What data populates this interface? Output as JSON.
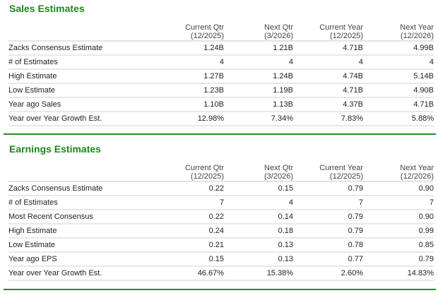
{
  "accent_color": "#1a8a1a",
  "sections": [
    {
      "title": "Sales Estimates",
      "columns": [
        {
          "label": "Current Qtr",
          "period": "(12/2025)"
        },
        {
          "label": "Next Qtr",
          "period": "(3/2026)"
        },
        {
          "label": "Current Year",
          "period": "(12/2025)"
        },
        {
          "label": "Next Year",
          "period": "(12/2026)"
        }
      ],
      "rows": [
        {
          "label": "Zacks Consensus Estimate",
          "values": [
            "1.24B",
            "1.21B",
            "4.71B",
            "4.99B"
          ]
        },
        {
          "label": "# of Estimates",
          "values": [
            "4",
            "4",
            "4",
            "4"
          ]
        },
        {
          "label": "High Estimate",
          "values": [
            "1.27B",
            "1.24B",
            "4.74B",
            "5.14B"
          ]
        },
        {
          "label": "Low Estimate",
          "values": [
            "1.23B",
            "1.19B",
            "4.71B",
            "4.90B"
          ]
        },
        {
          "label": "Year ago Sales",
          "values": [
            "1.10B",
            "1.13B",
            "4.37B",
            "4.71B"
          ]
        },
        {
          "label": "Year over Year Growth Est.",
          "values": [
            "12.98%",
            "7.34%",
            "7.83%",
            "5.88%"
          ]
        }
      ]
    },
    {
      "title": "Earnings Estimates",
      "columns": [
        {
          "label": "Current Qtr",
          "period": "(12/2025)"
        },
        {
          "label": "Next Qtr",
          "period": "(3/2026)"
        },
        {
          "label": "Current Year",
          "period": "(12/2025)"
        },
        {
          "label": "Next Year",
          "period": "(12/2026)"
        }
      ],
      "rows": [
        {
          "label": "Zacks Consensus Estimate",
          "values": [
            "0.22",
            "0.15",
            "0.79",
            "0.90"
          ]
        },
        {
          "label": "# of Estimates",
          "values": [
            "7",
            "4",
            "7",
            "7"
          ]
        },
        {
          "label": "Most Recent Consensus",
          "values": [
            "0.22",
            "0.14",
            "0.79",
            "0.90"
          ]
        },
        {
          "label": "High Estimate",
          "values": [
            "0.24",
            "0.18",
            "0.79",
            "0.99"
          ]
        },
        {
          "label": "Low Estimate",
          "values": [
            "0.21",
            "0.13",
            "0.78",
            "0.85"
          ]
        },
        {
          "label": "Year ago EPS",
          "values": [
            "0.15",
            "0.13",
            "0.77",
            "0.79"
          ]
        },
        {
          "label": "Year over Year Growth Est.",
          "values": [
            "46.67%",
            "15.38%",
            "2.60%",
            "14.83%"
          ]
        }
      ]
    }
  ]
}
